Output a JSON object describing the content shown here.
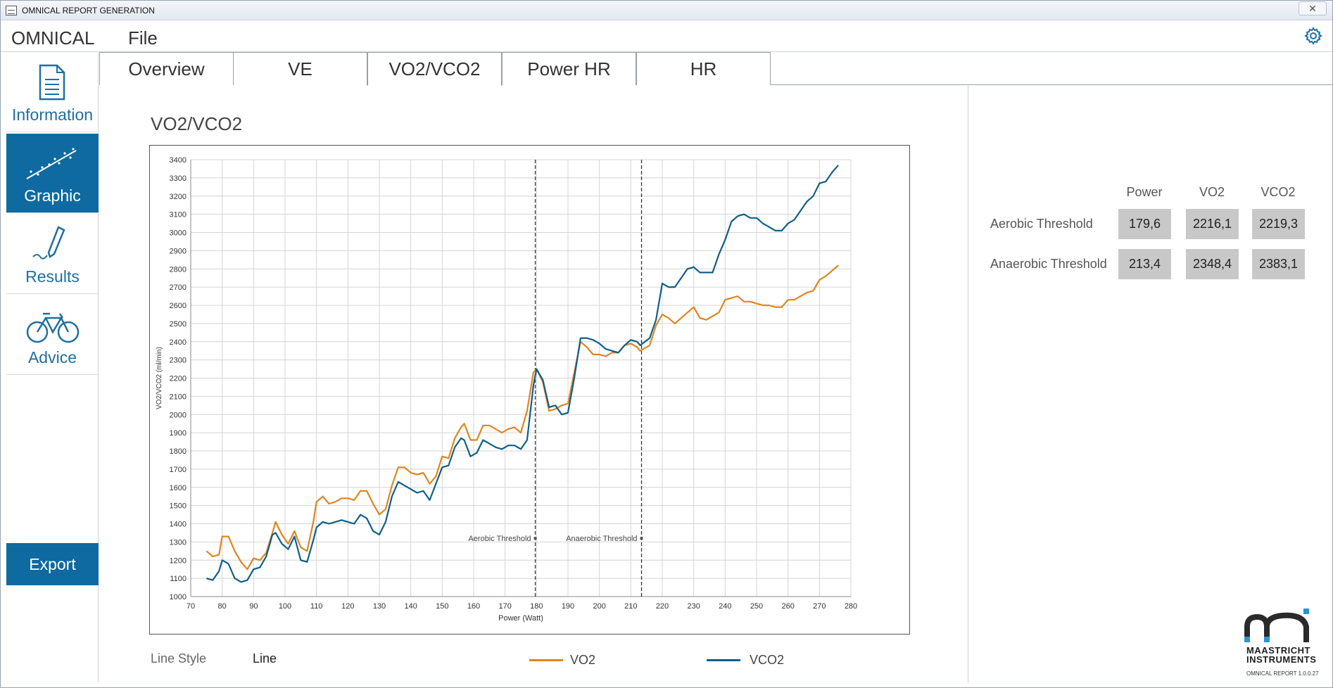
{
  "titlebar": {
    "title": "OMNICAL REPORT GENERATION",
    "close_label": "✕"
  },
  "menu": {
    "brand": "OMNICAL",
    "file": "File"
  },
  "sidebar": {
    "items": [
      {
        "label": "Information"
      },
      {
        "label": "Graphic"
      },
      {
        "label": "Results"
      },
      {
        "label": "Advice"
      }
    ],
    "export_label": "Export"
  },
  "tabs": [
    {
      "label": "Overview"
    },
    {
      "label": "VE"
    },
    {
      "label": "VO2/VCO2"
    },
    {
      "label": "Power HR"
    },
    {
      "label": "HR"
    }
  ],
  "active_tab": "VO2/VCO2",
  "chart_title": "VO2/VCO2",
  "footer": {
    "line_style_label": "Line Style",
    "line_style_value": "Line",
    "legend_vo2": "VO2",
    "legend_vco2": "VCO2"
  },
  "thresholds": {
    "headers": [
      "Power",
      "VO2",
      "VCO2"
    ],
    "rows": [
      {
        "label": "Aerobic Threshold",
        "power": "179,6",
        "vo2": "2216,1",
        "vco2": "2219,3"
      },
      {
        "label": "Anaerobic Threshold",
        "power": "213,4",
        "vo2": "2348,4",
        "vco2": "2383,1"
      }
    ]
  },
  "logo": {
    "line1": "MAASTRICHT",
    "line2": "INSTRUMENTS",
    "line3": "OMNICAL REPORT 1.0.0.27"
  },
  "colors": {
    "accent": "#0e6aa0",
    "vo2": "#e0851f",
    "vco2": "#0f5f8a",
    "cell": "#c8c8c8"
  },
  "chart_data": {
    "type": "line",
    "xlabel": "Power (Watt)",
    "ylabel": "VO2/VCO2 (ml/min)",
    "xlim": [
      70,
      280
    ],
    "ylim": [
      1000,
      3400
    ],
    "xticks": [
      70,
      80,
      90,
      100,
      110,
      120,
      130,
      140,
      150,
      160,
      170,
      180,
      190,
      200,
      210,
      220,
      230,
      240,
      250,
      260,
      270,
      280
    ],
    "yticks": [
      1000,
      1100,
      1200,
      1300,
      1400,
      1500,
      1600,
      1700,
      1800,
      1900,
      2000,
      2100,
      2200,
      2300,
      2400,
      2500,
      2600,
      2700,
      2800,
      2900,
      3000,
      3100,
      3200,
      3300,
      3400
    ],
    "grid": true,
    "annotations": [
      {
        "label": "Aerobic Threshold",
        "x": 179.6,
        "y": 1320
      },
      {
        "label": "Anaerobic Threshold",
        "x": 213.4,
        "y": 1320
      }
    ],
    "series": [
      {
        "name": "VO2",
        "color": "#e0851f",
        "points": [
          [
            75,
            1250
          ],
          [
            77,
            1220
          ],
          [
            79,
            1230
          ],
          [
            80,
            1330
          ],
          [
            82,
            1330
          ],
          [
            84,
            1250
          ],
          [
            86,
            1190
          ],
          [
            88,
            1150
          ],
          [
            90,
            1210
          ],
          [
            92,
            1200
          ],
          [
            94,
            1240
          ],
          [
            96,
            1350
          ],
          [
            97,
            1410
          ],
          [
            99,
            1340
          ],
          [
            101,
            1290
          ],
          [
            103,
            1360
          ],
          [
            105,
            1270
          ],
          [
            107,
            1250
          ],
          [
            109,
            1410
          ],
          [
            110,
            1520
          ],
          [
            112,
            1550
          ],
          [
            114,
            1510
          ],
          [
            116,
            1520
          ],
          [
            118,
            1540
          ],
          [
            120,
            1540
          ],
          [
            122,
            1530
          ],
          [
            124,
            1580
          ],
          [
            126,
            1580
          ],
          [
            128,
            1510
          ],
          [
            130,
            1450
          ],
          [
            132,
            1480
          ],
          [
            134,
            1610
          ],
          [
            136,
            1710
          ],
          [
            138,
            1710
          ],
          [
            140,
            1680
          ],
          [
            142,
            1670
          ],
          [
            144,
            1680
          ],
          [
            146,
            1620
          ],
          [
            148,
            1660
          ],
          [
            150,
            1770
          ],
          [
            152,
            1760
          ],
          [
            154,
            1870
          ],
          [
            156,
            1930
          ],
          [
            157,
            1950
          ],
          [
            159,
            1860
          ],
          [
            161,
            1860
          ],
          [
            163,
            1940
          ],
          [
            165,
            1940
          ],
          [
            167,
            1920
          ],
          [
            169,
            1900
          ],
          [
            171,
            1920
          ],
          [
            173,
            1930
          ],
          [
            175,
            1900
          ],
          [
            177,
            2020
          ],
          [
            179,
            2230
          ],
          [
            180,
            2250
          ],
          [
            182,
            2180
          ],
          [
            184,
            2020
          ],
          [
            186,
            2030
          ],
          [
            188,
            2050
          ],
          [
            190,
            2060
          ],
          [
            192,
            2230
          ],
          [
            194,
            2400
          ],
          [
            196,
            2370
          ],
          [
            198,
            2330
          ],
          [
            200,
            2330
          ],
          [
            202,
            2320
          ],
          [
            204,
            2340
          ],
          [
            206,
            2340
          ],
          [
            208,
            2380
          ],
          [
            210,
            2390
          ],
          [
            212,
            2370
          ],
          [
            213,
            2350
          ],
          [
            216,
            2380
          ],
          [
            218,
            2490
          ],
          [
            220,
            2550
          ],
          [
            222,
            2530
          ],
          [
            224,
            2500
          ],
          [
            226,
            2530
          ],
          [
            228,
            2560
          ],
          [
            230,
            2590
          ],
          [
            232,
            2530
          ],
          [
            234,
            2520
          ],
          [
            236,
            2540
          ],
          [
            238,
            2560
          ],
          [
            240,
            2630
          ],
          [
            242,
            2640
          ],
          [
            244,
            2650
          ],
          [
            246,
            2620
          ],
          [
            248,
            2620
          ],
          [
            250,
            2610
          ],
          [
            252,
            2600
          ],
          [
            254,
            2600
          ],
          [
            256,
            2590
          ],
          [
            258,
            2590
          ],
          [
            260,
            2630
          ],
          [
            262,
            2630
          ],
          [
            264,
            2650
          ],
          [
            266,
            2670
          ],
          [
            268,
            2680
          ],
          [
            270,
            2740
          ],
          [
            272,
            2760
          ],
          [
            274,
            2790
          ],
          [
            276,
            2820
          ]
        ]
      },
      {
        "name": "VCO2",
        "color": "#0f5f8a",
        "points": [
          [
            75,
            1100
          ],
          [
            77,
            1090
          ],
          [
            79,
            1140
          ],
          [
            80,
            1200
          ],
          [
            82,
            1180
          ],
          [
            84,
            1100
          ],
          [
            86,
            1080
          ],
          [
            88,
            1090
          ],
          [
            90,
            1150
          ],
          [
            92,
            1160
          ],
          [
            94,
            1220
          ],
          [
            96,
            1340
          ],
          [
            97,
            1350
          ],
          [
            99,
            1290
          ],
          [
            101,
            1260
          ],
          [
            103,
            1330
          ],
          [
            105,
            1200
          ],
          [
            107,
            1190
          ],
          [
            109,
            1310
          ],
          [
            110,
            1380
          ],
          [
            112,
            1410
          ],
          [
            114,
            1400
          ],
          [
            116,
            1410
          ],
          [
            118,
            1420
          ],
          [
            120,
            1410
          ],
          [
            122,
            1400
          ],
          [
            124,
            1450
          ],
          [
            126,
            1430
          ],
          [
            128,
            1360
          ],
          [
            130,
            1340
          ],
          [
            132,
            1410
          ],
          [
            134,
            1550
          ],
          [
            136,
            1630
          ],
          [
            138,
            1610
          ],
          [
            140,
            1590
          ],
          [
            142,
            1570
          ],
          [
            144,
            1580
          ],
          [
            146,
            1530
          ],
          [
            148,
            1620
          ],
          [
            150,
            1710
          ],
          [
            152,
            1720
          ],
          [
            154,
            1820
          ],
          [
            156,
            1870
          ],
          [
            157,
            1860
          ],
          [
            159,
            1770
          ],
          [
            161,
            1790
          ],
          [
            163,
            1860
          ],
          [
            165,
            1840
          ],
          [
            167,
            1820
          ],
          [
            169,
            1810
          ],
          [
            171,
            1830
          ],
          [
            173,
            1830
          ],
          [
            175,
            1810
          ],
          [
            177,
            1860
          ],
          [
            179,
            2160
          ],
          [
            180,
            2250
          ],
          [
            182,
            2190
          ],
          [
            184,
            2040
          ],
          [
            186,
            2050
          ],
          [
            188,
            2000
          ],
          [
            190,
            2010
          ],
          [
            192,
            2200
          ],
          [
            194,
            2420
          ],
          [
            196,
            2420
          ],
          [
            198,
            2410
          ],
          [
            200,
            2390
          ],
          [
            202,
            2360
          ],
          [
            204,
            2350
          ],
          [
            206,
            2340
          ],
          [
            208,
            2380
          ],
          [
            210,
            2410
          ],
          [
            212,
            2400
          ],
          [
            213,
            2380
          ],
          [
            216,
            2420
          ],
          [
            218,
            2520
          ],
          [
            220,
            2720
          ],
          [
            222,
            2700
          ],
          [
            224,
            2700
          ],
          [
            226,
            2750
          ],
          [
            228,
            2800
          ],
          [
            230,
            2810
          ],
          [
            232,
            2780
          ],
          [
            234,
            2780
          ],
          [
            236,
            2780
          ],
          [
            238,
            2880
          ],
          [
            240,
            2960
          ],
          [
            242,
            3060
          ],
          [
            244,
            3090
          ],
          [
            246,
            3100
          ],
          [
            248,
            3080
          ],
          [
            250,
            3080
          ],
          [
            252,
            3050
          ],
          [
            254,
            3030
          ],
          [
            256,
            3010
          ],
          [
            258,
            3010
          ],
          [
            260,
            3050
          ],
          [
            262,
            3070
          ],
          [
            264,
            3120
          ],
          [
            266,
            3170
          ],
          [
            268,
            3200
          ],
          [
            270,
            3270
          ],
          [
            272,
            3280
          ],
          [
            274,
            3330
          ],
          [
            276,
            3370
          ]
        ]
      }
    ]
  }
}
